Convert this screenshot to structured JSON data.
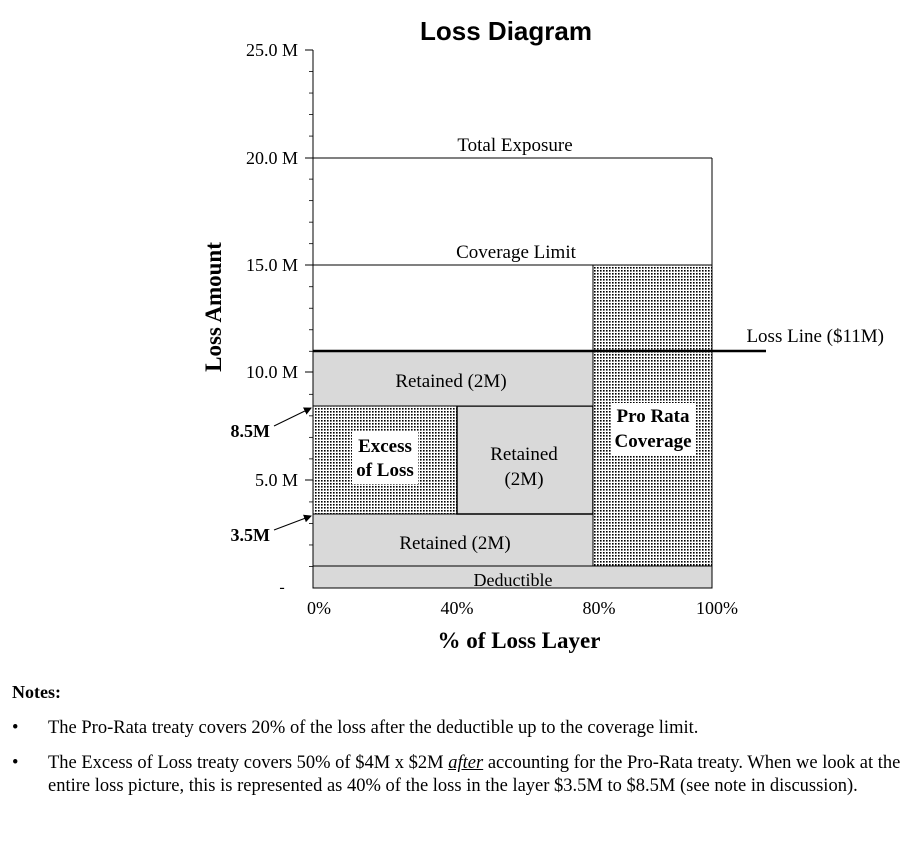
{
  "title": "Loss Diagram",
  "axes": {
    "y_label": "Loss Amount",
    "x_label": "% of Loss Layer",
    "y_ticks": [
      {
        "value": 25,
        "label": "25.0 M"
      },
      {
        "value": 20,
        "label": "20.0 M"
      },
      {
        "value": 15,
        "label": "15.0 M"
      },
      {
        "value": 10,
        "label": "10.0 M"
      },
      {
        "value": 5,
        "label": "5.0 M"
      },
      {
        "value": 0,
        "label": "-"
      }
    ],
    "x_ticks": [
      {
        "value": 0,
        "label": "0%"
      },
      {
        "value": 40,
        "label": "40%"
      },
      {
        "value": 80,
        "label": "80%"
      },
      {
        "value": 100,
        "label": "100%"
      }
    ],
    "y_range": [
      0,
      25
    ],
    "x_range": [
      0,
      100
    ]
  },
  "levels": {
    "total_exposure": {
      "value": 20,
      "label": "Total Exposure"
    },
    "coverage_limit": {
      "value": 15,
      "label": "Coverage Limit"
    },
    "loss_line": {
      "value": 11,
      "label": "Loss Line ($11M)"
    }
  },
  "callouts": {
    "upper": {
      "value": 8.5,
      "label": "8.5M"
    },
    "lower": {
      "value": 3.5,
      "label": "3.5M"
    }
  },
  "regions": {
    "deductible": {
      "x0": 0,
      "x1": 100,
      "y0": 1,
      "y1": 0,
      "label": "Deductible"
    },
    "retained_bottom": {
      "x0": 0,
      "x1": 80,
      "y0": 1,
      "y1": 3.5,
      "label": "Retained (2M)"
    },
    "excess_of_loss": {
      "x0": 0,
      "x1": 40,
      "y0": 3.5,
      "y1": 8.5,
      "label_line1": "Excess",
      "label_line2": "of Loss"
    },
    "retained_middle": {
      "x0": 40,
      "x1": 80,
      "y0": 3.5,
      "y1": 8.5,
      "label_line1": "Retained",
      "label_line2": "(2M)"
    },
    "retained_top": {
      "x0": 0,
      "x1": 80,
      "y0": 8.5,
      "y1": 11,
      "label": "Retained (2M)"
    },
    "pro_rata": {
      "x0": 80,
      "x1": 100,
      "y0": 1,
      "y1": 15,
      "label_line1": "Pro Rata",
      "label_line2": "Coverage"
    }
  },
  "colors": {
    "retained_fill": "#d9d9d9",
    "dot_color": "#000000",
    "line_color": "#000000"
  },
  "notes": {
    "heading": "Notes:",
    "bullet": "•",
    "note1": "The Pro-Rata treaty covers 20% of the loss after the deductible up to the coverage limit.",
    "note2_part1": "The Excess of Loss treaty covers 50% of $4M x $2M ",
    "note2_emph": "after",
    "note2_part2": " accounting for the Pro-Rata treaty. When we look at the entire loss picture, this is represented as 40% of the loss in the layer $3.5M to $8.5M (see note in discussion)."
  }
}
